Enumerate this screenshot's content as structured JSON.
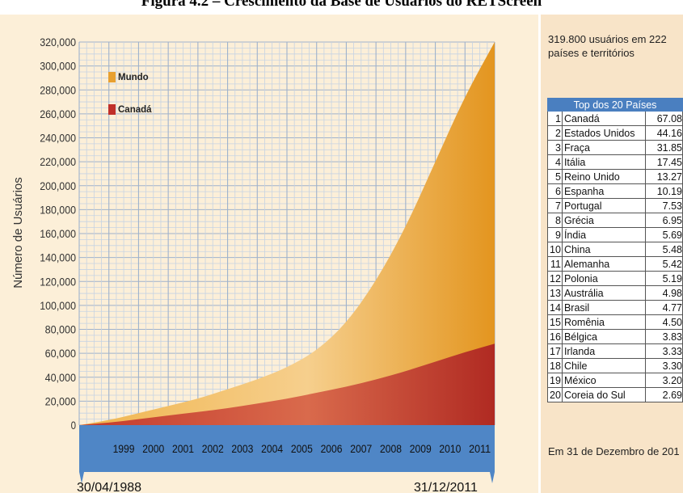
{
  "figure_title": "Figura 4.2 – Crescimento da Base de Usuários do RETScreen",
  "side_panel": {
    "summary": "319.800 usuários em 222 países e territórios",
    "footer": "Em 31 de Dezembro de 201",
    "table_header": "Top dos 20 Países",
    "rows": [
      {
        "rank": "1",
        "country": "Canadá",
        "users": "67.08"
      },
      {
        "rank": "2",
        "country": "Estados Unidos",
        "users": "44.16"
      },
      {
        "rank": "3",
        "country": "Fraça",
        "users": "31.85"
      },
      {
        "rank": "4",
        "country": "Itália",
        "users": "17.45"
      },
      {
        "rank": "5",
        "country": "Reino Unido",
        "users": "13.27"
      },
      {
        "rank": "6",
        "country": "Espanha",
        "users": "10.19"
      },
      {
        "rank": "7",
        "country": "Portugal",
        "users": "7.53"
      },
      {
        "rank": "8",
        "country": "Grécia",
        "users": "6.95"
      },
      {
        "rank": "9",
        "country": "Índia",
        "users": "5.69"
      },
      {
        "rank": "10",
        "country": "China",
        "users": "5.48"
      },
      {
        "rank": "11",
        "country": "Alemanha",
        "users": "5.42"
      },
      {
        "rank": "12",
        "country": "Polonia",
        "users": "5.19"
      },
      {
        "rank": "13",
        "country": "Austrália",
        "users": "4.98"
      },
      {
        "rank": "14",
        "country": "Brasil",
        "users": "4.77"
      },
      {
        "rank": "15",
        "country": "Romênia",
        "users": "4.50"
      },
      {
        "rank": "16",
        "country": "Bélgica",
        "users": "3.83"
      },
      {
        "rank": "17",
        "country": "Irlanda",
        "users": "3.33"
      },
      {
        "rank": "18",
        "country": "Chile",
        "users": "3.30"
      },
      {
        "rank": "19",
        "country": "México",
        "users": "3.20"
      },
      {
        "rank": "20",
        "country": "Coreia do Sul",
        "users": "2.69"
      }
    ]
  },
  "chart_data": {
    "type": "area",
    "title": "",
    "ylabel": "Número de Usuários",
    "xlabel": "",
    "ylim": [
      0,
      320000
    ],
    "yticks": [
      0,
      20000,
      40000,
      60000,
      80000,
      100000,
      120000,
      140000,
      160000,
      180000,
      200000,
      220000,
      240000,
      260000,
      280000,
      300000,
      320000
    ],
    "ytick_labels": [
      "0",
      "20,000",
      "40,000",
      "60,000",
      "80,000",
      "100,000",
      "120,000",
      "140,000",
      "160,000",
      "180,000",
      "200,000",
      "220,000",
      "240,000",
      "260,000",
      "280,000",
      "300,000",
      "320,000"
    ],
    "xlim": [
      1998,
      2012
    ],
    "xticks": [
      1999,
      2000,
      2001,
      2002,
      2003,
      2004,
      2005,
      2006,
      2007,
      2008,
      2009,
      2010,
      2011
    ],
    "xtick_labels": [
      "1999",
      "2000",
      "2001",
      "2002",
      "2003",
      "2004",
      "2005",
      "2006",
      "2007",
      "2008",
      "2009",
      "2010",
      "2011"
    ],
    "start_date_label": "30/04/1988",
    "end_date_label": "31/12/2011",
    "grid": true,
    "legend_position": "top-left",
    "series": [
      {
        "name": "Mundo",
        "color": "#e8a030",
        "x": [
          1998,
          1999,
          2000,
          2001,
          2002,
          2003,
          2004,
          2005,
          2006,
          2007,
          2008,
          2009,
          2010,
          2011,
          2012
        ],
        "y": [
          0,
          4000,
          10000,
          16000,
          22000,
          30000,
          38000,
          48000,
          62000,
          85000,
          120000,
          165000,
          220000,
          275000,
          320000
        ]
      },
      {
        "name": "Canadá",
        "color": "#c0302a",
        "x": [
          1998,
          1999,
          2000,
          2001,
          2002,
          2003,
          2004,
          2005,
          2006,
          2007,
          2008,
          2009,
          2010,
          2011,
          2012
        ],
        "y": [
          0,
          2000,
          5000,
          8000,
          11000,
          14000,
          18000,
          22000,
          27000,
          32000,
          38000,
          45000,
          53000,
          61000,
          68000
        ]
      }
    ]
  }
}
